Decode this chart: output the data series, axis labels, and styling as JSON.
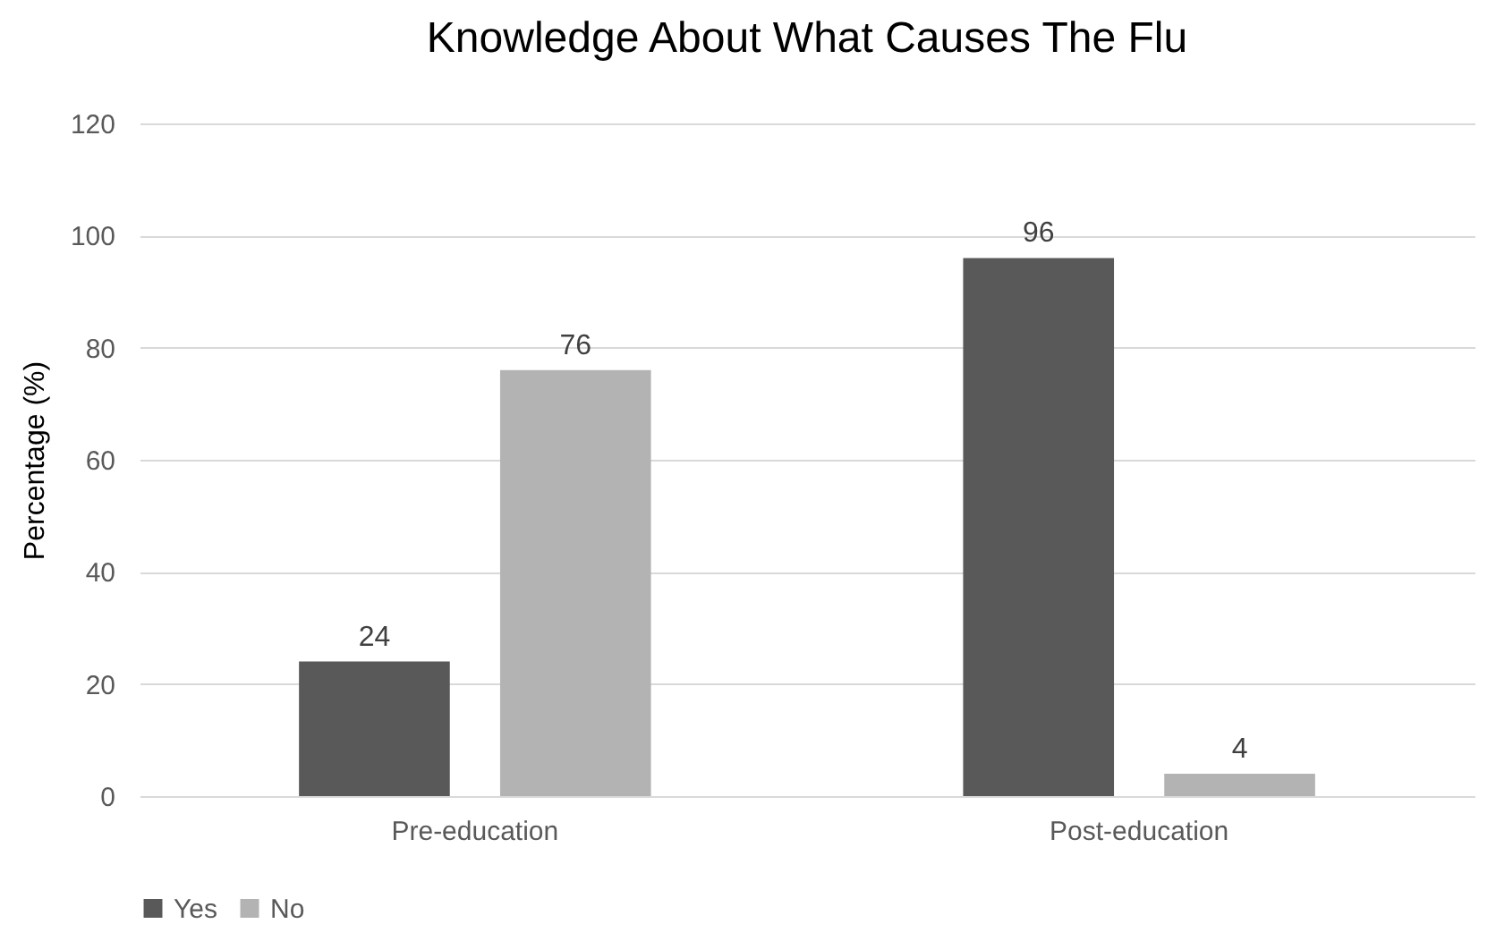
{
  "chart_data": {
    "type": "bar",
    "title": "Knowledge About What Causes The Flu",
    "ylabel": "Percentage (%)",
    "categories": [
      "Pre-education",
      "Post-education"
    ],
    "series": [
      {
        "name": "Yes",
        "color": "#595959",
        "values": [
          24,
          96
        ]
      },
      {
        "name": "No",
        "color": "#b3b3b3",
        "values": [
          76,
          4
        ]
      }
    ],
    "ylim": [
      0,
      120
    ],
    "yticks": [
      0,
      20,
      40,
      60,
      80,
      100,
      120
    ],
    "grid": "y",
    "legend": "bottom",
    "data_labels": true
  }
}
